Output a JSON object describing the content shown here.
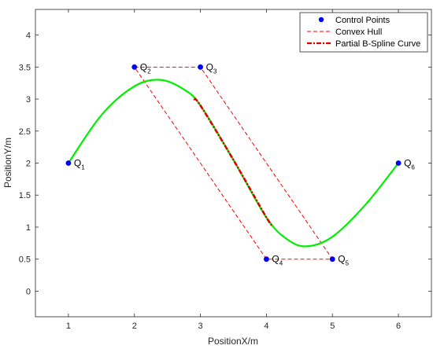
{
  "chart_data": {
    "type": "line",
    "xlabel": "PositionX/m",
    "ylabel": "PositionY/m",
    "xlim": [
      0.5,
      6.5
    ],
    "ylim": [
      -0.4,
      4.4
    ],
    "xticks": [
      "1",
      "2",
      "3",
      "4",
      "5",
      "6"
    ],
    "xtick_values": [
      1,
      2,
      3,
      4,
      5,
      6
    ],
    "yticks": [
      "0",
      "0.5",
      "1",
      "1.5",
      "2",
      "2.5",
      "3",
      "3.5",
      "4"
    ],
    "ytick_values": [
      0,
      0.5,
      1,
      1.5,
      2,
      2.5,
      3,
      3.5,
      4
    ],
    "grid": false,
    "legend_position": "top-right",
    "legend": [
      {
        "label": "Control Points",
        "color": "#0000ff",
        "style": "marker"
      },
      {
        "label": "Convex Hull",
        "color": "#ff0000",
        "style": "dashed"
      },
      {
        "label": "Partial B-Spline Curve",
        "color": "#ff0000",
        "style": "dashdot"
      }
    ],
    "control_points": [
      {
        "name": "Q",
        "sub": "1",
        "x": 1,
        "y": 2
      },
      {
        "name": "Q",
        "sub": "2",
        "x": 2,
        "y": 3.5
      },
      {
        "name": "Q",
        "sub": "3",
        "x": 3,
        "y": 3.5
      },
      {
        "name": "Q",
        "sub": "4",
        "x": 4,
        "y": 0.5
      },
      {
        "name": "Q",
        "sub": "5",
        "x": 5,
        "y": 0.5
      },
      {
        "name": "Q",
        "sub": "6",
        "x": 6,
        "y": 2
      }
    ],
    "convex_hull": {
      "color": "#ff0000",
      "x": [
        2,
        3,
        5,
        4,
        2
      ],
      "y": [
        3.5,
        3.5,
        0.5,
        0.5,
        3.5
      ]
    },
    "curve": {
      "color": "#00ee00",
      "x": [
        1,
        1.5,
        2,
        2.4,
        2.75,
        3,
        3.5,
        4,
        4.3,
        4.6,
        5,
        5.5,
        6
      ],
      "y": [
        2,
        2.75,
        3.2,
        3.3,
        3.15,
        2.9,
        2.05,
        1.15,
        0.82,
        0.7,
        0.85,
        1.35,
        2
      ]
    },
    "partial_curve": {
      "color": "#dd0000",
      "x": [
        2.9,
        3,
        3.5,
        4,
        4.1
      ],
      "y": [
        3.0,
        2.9,
        2.05,
        1.15,
        1.02
      ]
    },
    "colors": {
      "marker": "#0000ff",
      "hull": "#ff0000",
      "curve": "#00ee00",
      "partial": "#dd0000",
      "axis": "#262626"
    }
  }
}
